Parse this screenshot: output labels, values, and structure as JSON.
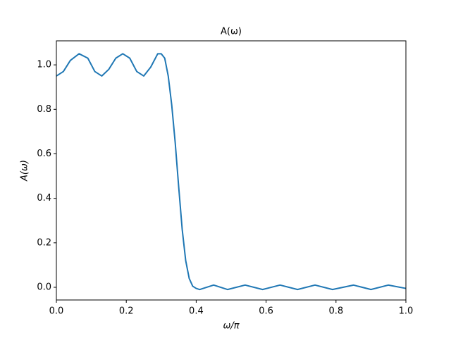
{
  "chart_data": {
    "type": "line",
    "title": "A(ω)",
    "xlabel": "ω/π",
    "ylabel": "A(ω)",
    "x": [
      0,
      0.02,
      0.04,
      0.065,
      0.09,
      0.11,
      0.13,
      0.15,
      0.17,
      0.19,
      0.21,
      0.23,
      0.25,
      0.27,
      0.29,
      0.3,
      0.31,
      0.32,
      0.33,
      0.34,
      0.35,
      0.36,
      0.37,
      0.38,
      0.39,
      0.4,
      0.41,
      0.42,
      0.45,
      0.49,
      0.54,
      0.59,
      0.64,
      0.69,
      0.74,
      0.79,
      0.85,
      0.9,
      0.95,
      1.0
    ],
    "series": [
      {
        "name": "A(ω)",
        "color": "#1f77b4",
        "values": [
          0.95,
          0.97,
          1.02,
          1.05,
          1.03,
          0.97,
          0.95,
          0.98,
          1.03,
          1.05,
          1.03,
          0.97,
          0.95,
          0.99,
          1.05,
          1.05,
          1.03,
          0.95,
          0.82,
          0.65,
          0.45,
          0.26,
          0.12,
          0.04,
          0.005,
          -0.005,
          -0.01,
          -0.005,
          0.01,
          -0.01,
          0.01,
          -0.01,
          0.01,
          -0.01,
          0.01,
          -0.01,
          0.01,
          -0.01,
          0.01,
          -0.005
        ]
      }
    ],
    "xlim": [
      0,
      1
    ],
    "ylim": [
      -0.057,
      1.108
    ],
    "xticks": [
      {
        "value": 0,
        "label": "0.0"
      },
      0.2,
      0.4,
      0.6,
      0.8,
      {
        "value": 1,
        "label": "1.0"
      }
    ],
    "yticks": [
      {
        "value": 0,
        "label": "0.0"
      },
      0.2,
      0.4,
      0.6,
      0.8,
      {
        "value": 1,
        "label": "1.0"
      }
    ],
    "grid": false
  }
}
